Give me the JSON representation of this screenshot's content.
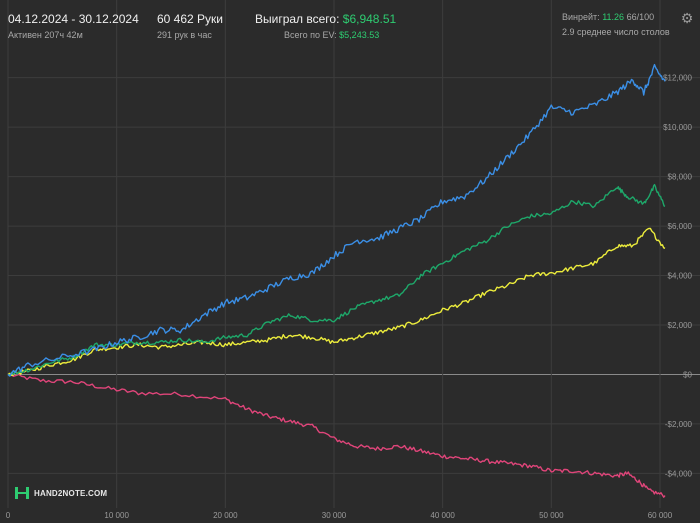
{
  "header": {
    "date_range": "04.12.2024 - 30.12.2024",
    "active": "Активен 207ч 42м",
    "hands": "60 462 Руки",
    "hands_per_hour": "291 рук в час",
    "won_total_label": "Выиграл всего:",
    "won_total_value": "$6,948.51",
    "ev_total_label": "Всего по EV:",
    "ev_total_value": "$5,243.53",
    "winrate_label": "Винрейт:",
    "winrate_value": "11.26",
    "winrate_extra": "66/100",
    "avg_tables": "2.9 среднее число столов"
  },
  "logo_text": "HAND2NOTE.COM",
  "icons": {
    "settings": "gear-icon",
    "logo": "hand2note-logo-icon"
  },
  "colors": {
    "background": "#2b2b2b",
    "grid": "#3d3d3d",
    "zero_line": "#8a8a8a",
    "blue": "#3b8fe6",
    "green": "#1ea86a",
    "yellow": "#ecec3c",
    "pink": "#e0457a"
  },
  "chart_data": {
    "type": "line",
    "xlim": [
      0,
      60462
    ],
    "ylim": [
      -5400,
      13200
    ],
    "x_ticks": [
      0,
      10000,
      20000,
      30000,
      40000,
      50000,
      60000
    ],
    "x_tick_labels": [
      "0",
      "10 000",
      "20 000",
      "30 000",
      "40 000",
      "50 000",
      "60 000"
    ],
    "y_ticks": [
      -4000,
      -2000,
      0,
      2000,
      4000,
      6000,
      8000,
      10000,
      12000
    ],
    "y_tick_labels": [
      "-$4,000",
      "-$2,000",
      "$0",
      "$2,000",
      "$4,000",
      "$6,000",
      "$8,000",
      "$10,000",
      "$12,000"
    ],
    "grid": true,
    "series": [
      {
        "color": "#3b8fe6",
        "points": [
          [
            0,
            0
          ],
          [
            2000,
            400
          ],
          [
            5000,
            700
          ],
          [
            8000,
            1000
          ],
          [
            10000,
            1300
          ],
          [
            12000,
            1500
          ],
          [
            14000,
            1800
          ],
          [
            16000,
            1800
          ],
          [
            18000,
            2400
          ],
          [
            20000,
            2900
          ],
          [
            22000,
            3100
          ],
          [
            24000,
            3500
          ],
          [
            26000,
            3900
          ],
          [
            28000,
            4100
          ],
          [
            30000,
            4800
          ],
          [
            32000,
            5400
          ],
          [
            34000,
            5500
          ],
          [
            36000,
            5900
          ],
          [
            38000,
            6300
          ],
          [
            40000,
            7000
          ],
          [
            42000,
            7200
          ],
          [
            44000,
            7900
          ],
          [
            46000,
            8800
          ],
          [
            48000,
            9700
          ],
          [
            50000,
            10800
          ],
          [
            52000,
            10600
          ],
          [
            54000,
            10900
          ],
          [
            56000,
            11400
          ],
          [
            57500,
            11900
          ],
          [
            58500,
            11400
          ],
          [
            59500,
            12400
          ],
          [
            60462,
            11850
          ]
        ]
      },
      {
        "color": "#1ea86a",
        "points": [
          [
            0,
            0
          ],
          [
            2000,
            200
          ],
          [
            4000,
            500
          ],
          [
            6000,
            700
          ],
          [
            8000,
            1200
          ],
          [
            10000,
            1200
          ],
          [
            12000,
            1300
          ],
          [
            14000,
            1300
          ],
          [
            16000,
            1400
          ],
          [
            18000,
            1300
          ],
          [
            20000,
            1500
          ],
          [
            22000,
            1600
          ],
          [
            24000,
            2100
          ],
          [
            26000,
            2400
          ],
          [
            28000,
            2200
          ],
          [
            30000,
            2200
          ],
          [
            32000,
            2700
          ],
          [
            34000,
            3000
          ],
          [
            36000,
            3200
          ],
          [
            38000,
            4000
          ],
          [
            40000,
            4500
          ],
          [
            42000,
            5000
          ],
          [
            44000,
            5400
          ],
          [
            46000,
            6000
          ],
          [
            48000,
            6400
          ],
          [
            50000,
            6500
          ],
          [
            52000,
            7000
          ],
          [
            54000,
            6800
          ],
          [
            56000,
            7600
          ],
          [
            57000,
            7200
          ],
          [
            58500,
            6900
          ],
          [
            59500,
            7600
          ],
          [
            60462,
            6800
          ]
        ]
      },
      {
        "color": "#ecec3c",
        "points": [
          [
            0,
            0
          ],
          [
            2000,
            150
          ],
          [
            4000,
            400
          ],
          [
            6000,
            600
          ],
          [
            8000,
            1000
          ],
          [
            10000,
            1100
          ],
          [
            12000,
            1200
          ],
          [
            14000,
            1100
          ],
          [
            16000,
            1200
          ],
          [
            18000,
            1300
          ],
          [
            20000,
            1200
          ],
          [
            22000,
            1300
          ],
          [
            24000,
            1400
          ],
          [
            26000,
            1600
          ],
          [
            28000,
            1500
          ],
          [
            30000,
            1300
          ],
          [
            32000,
            1500
          ],
          [
            34000,
            1700
          ],
          [
            36000,
            1900
          ],
          [
            38000,
            2200
          ],
          [
            40000,
            2600
          ],
          [
            42000,
            2900
          ],
          [
            44000,
            3300
          ],
          [
            46000,
            3600
          ],
          [
            48000,
            4000
          ],
          [
            50000,
            4100
          ],
          [
            52000,
            4300
          ],
          [
            54000,
            4500
          ],
          [
            56000,
            5200
          ],
          [
            57500,
            5200
          ],
          [
            59000,
            5900
          ],
          [
            60462,
            5100
          ]
        ]
      },
      {
        "color": "#e0457a",
        "points": [
          [
            0,
            0
          ],
          [
            3000,
            -250
          ],
          [
            6000,
            -300
          ],
          [
            9000,
            -550
          ],
          [
            12000,
            -750
          ],
          [
            16000,
            -800
          ],
          [
            20000,
            -1000
          ],
          [
            22000,
            -1400
          ],
          [
            24000,
            -1700
          ],
          [
            26000,
            -1900
          ],
          [
            28000,
            -2100
          ],
          [
            30000,
            -2600
          ],
          [
            32000,
            -2900
          ],
          [
            34000,
            -3000
          ],
          [
            36000,
            -2900
          ],
          [
            38000,
            -3100
          ],
          [
            40000,
            -3300
          ],
          [
            42000,
            -3400
          ],
          [
            44000,
            -3500
          ],
          [
            46000,
            -3600
          ],
          [
            48000,
            -3700
          ],
          [
            50000,
            -3900
          ],
          [
            52000,
            -3900
          ],
          [
            54000,
            -4000
          ],
          [
            56000,
            -4100
          ],
          [
            57000,
            -4000
          ],
          [
            58000,
            -4300
          ],
          [
            59000,
            -4700
          ],
          [
            60462,
            -4900
          ]
        ]
      }
    ]
  }
}
